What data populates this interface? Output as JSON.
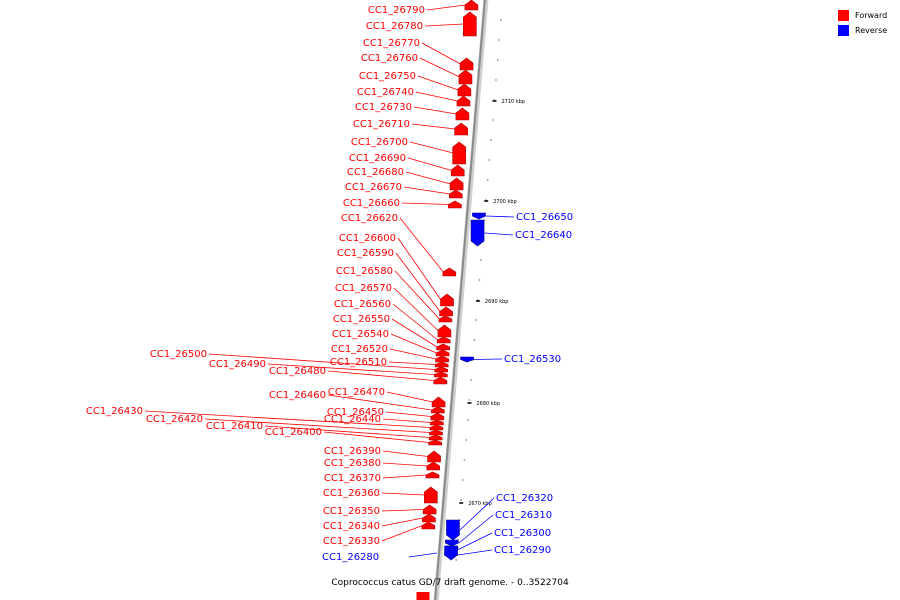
{
  "legend": {
    "forward_label": "Forward",
    "reverse_label": "Reverse",
    "forward_color": "#ff0000",
    "reverse_color": "#0000ff"
  },
  "caption": "Coprococcus catus GD/7 draft genome. - 0..3522704",
  "genome": {
    "axis_color": "#8a8a8a"
  },
  "scale_ticks": [
    "2710 kbp",
    "2700 kbp",
    "2690 kbp",
    "2680 kbp",
    "2670 kbp"
  ],
  "forward_genes": [
    "CC1_26790",
    "CC1_26780",
    "CC1_26770",
    "CC1_26760",
    "CC1_26750",
    "CC1_26740",
    "CC1_26730",
    "CC1_26710",
    "CC1_26700",
    "CC1_26690",
    "CC1_26680",
    "CC1_26670",
    "CC1_26660",
    "CC1_26620",
    "CC1_26600",
    "CC1_26590",
    "CC1_26580",
    "CC1_26570",
    "CC1_26560",
    "CC1_26550",
    "CC1_26540",
    "CC1_26520",
    "CC1_26510",
    "CC1_26500",
    "CC1_26490",
    "CC1_26480",
    "CC1_26470",
    "CC1_26460",
    "CC1_26450",
    "CC1_26440",
    "CC1_26430",
    "CC1_26420",
    "CC1_26410",
    "CC1_26400",
    "CC1_26390",
    "CC1_26380",
    "CC1_26370",
    "CC1_26360",
    "CC1_26350",
    "CC1_26340",
    "CC1_26330"
  ],
  "reverse_genes": [
    "CC1_26650",
    "CC1_26640",
    "CC1_26530",
    "CC1_26320",
    "CC1_26310",
    "CC1_26300",
    "CC1_26290",
    "CC1_26280"
  ]
}
